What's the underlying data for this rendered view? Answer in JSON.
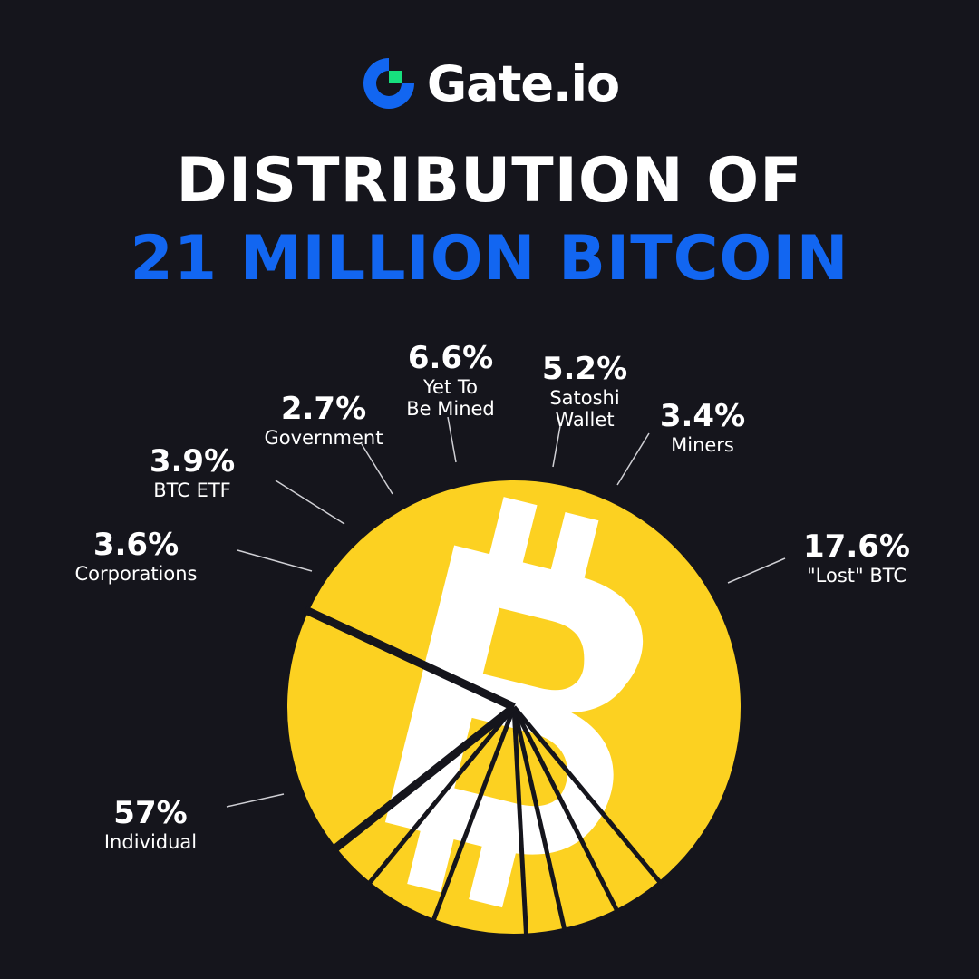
{
  "brand": {
    "name": "Gate.io",
    "blue": "#1266f1",
    "green": "#17e07e"
  },
  "title": {
    "line1": "DISTRIBUTION OF",
    "line2": "21 MILLION BITCOIN"
  },
  "colors": {
    "background": "#15151c",
    "slice": "#fcd121",
    "divider": "#15151c",
    "leader_line": "#cfcfd4",
    "bitcoin_symbol": "#ffffff"
  },
  "chart_data": {
    "type": "pie",
    "title": "DISTRIBUTION OF 21 MILLION BITCOIN",
    "unit": "%",
    "slices": [
      {
        "label": "Individual",
        "value": 57,
        "value_label": "57%"
      },
      {
        "label": "Corporations",
        "value": 3.6,
        "value_label": "3.6%"
      },
      {
        "label": "BTC ETF",
        "value": 3.9,
        "value_label": "3.9%"
      },
      {
        "label": "Government",
        "value": 2.7,
        "value_label": "2.7%"
      },
      {
        "label": "Yet To Be Mined",
        "value": 6.6,
        "value_label": "6.6%"
      },
      {
        "label": "Satoshi Wallet",
        "value": 5.2,
        "value_label": "5.2%"
      },
      {
        "label": "Miners",
        "value": 3.4,
        "value_label": "3.4%"
      },
      {
        "label": "\"Lost\" BTC",
        "value": 17.6,
        "value_label": "17.6%"
      }
    ]
  }
}
